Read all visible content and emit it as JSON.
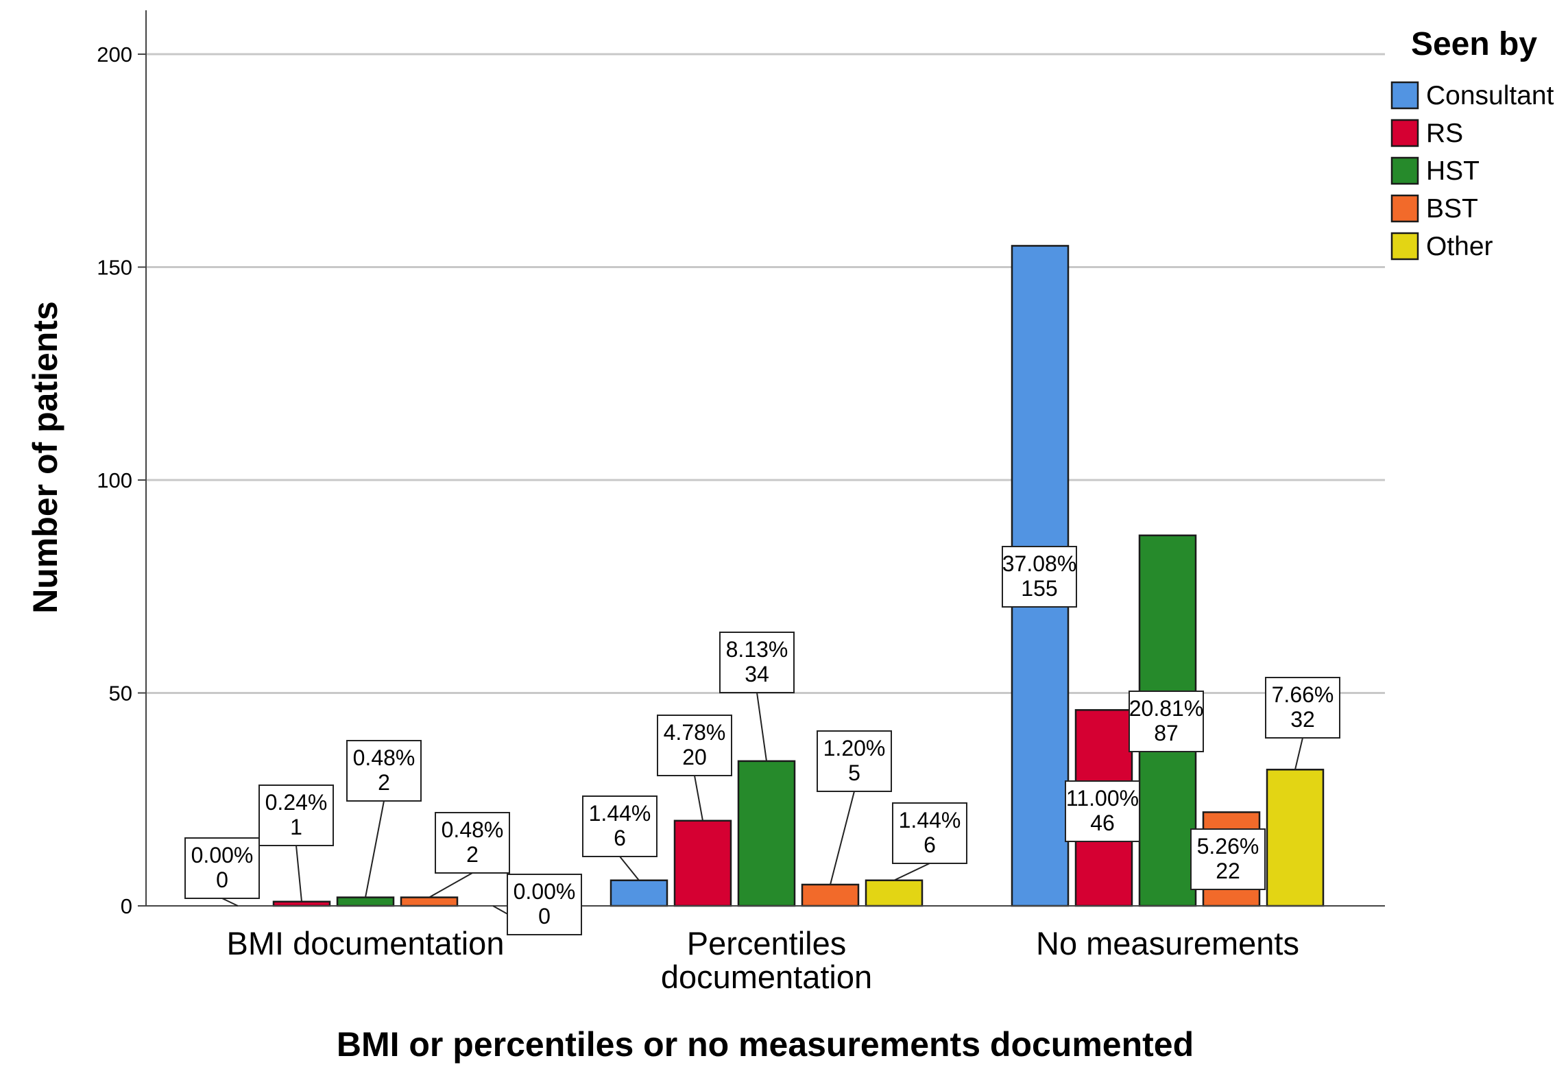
{
  "chart_data": {
    "type": "bar",
    "xlabel": "BMI or percentiles or no measurements documented",
    "ylabel": "Number of patients",
    "ylim": [
      0,
      200
    ],
    "yticks": [
      0,
      50,
      100,
      150,
      200
    ],
    "grid": true,
    "legend": {
      "title": "Seen by",
      "placement": "top-right"
    },
    "categories": [
      [
        "BMI documentation"
      ],
      [
        "Percentiles",
        "documentation"
      ],
      [
        "No measurements"
      ]
    ],
    "series": [
      {
        "name": "Consultant",
        "color": "#5294e2",
        "values": [
          0,
          6,
          155
        ],
        "labels": [
          "0.00%",
          "1.44%",
          "37.08%"
        ]
      },
      {
        "name": "RS",
        "color": "#d50032",
        "values": [
          1,
          20,
          46
        ],
        "labels": [
          "0.24%",
          "4.78%",
          "11.00%"
        ]
      },
      {
        "name": "HST",
        "color": "#268a2b",
        "values": [
          2,
          34,
          87
        ],
        "labels": [
          "0.48%",
          "8.13%",
          "20.81%"
        ]
      },
      {
        "name": "BST",
        "color": "#f26a2a",
        "values": [
          2,
          5,
          22
        ],
        "labels": [
          "0.48%",
          "1.20%",
          "5.26%"
        ]
      },
      {
        "name": "Other",
        "color": "#e3d514",
        "values": [
          0,
          6,
          32
        ],
        "labels": [
          "0.00%",
          "1.44%",
          "7.66%"
        ]
      }
    ]
  }
}
